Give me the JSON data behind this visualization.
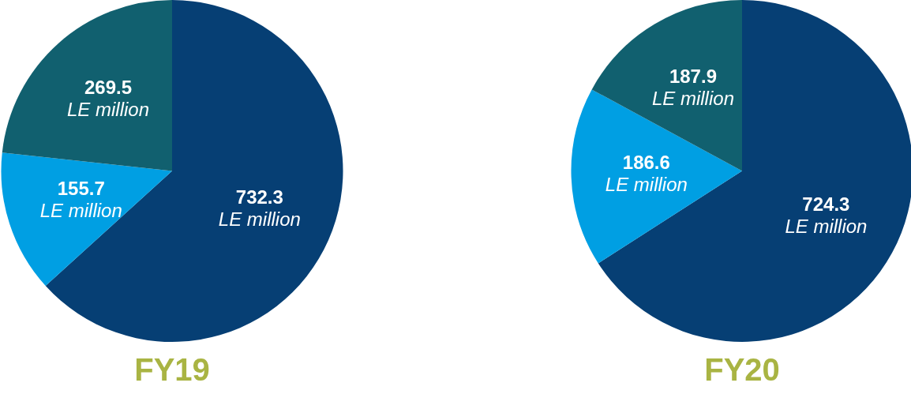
{
  "chart_data": [
    {
      "type": "pie",
      "title": "FY19",
      "categories": [
        null,
        null,
        null
      ],
      "values": [
        732.3,
        155.7,
        269.5
      ],
      "colors": [
        "#063f74",
        "#009fe3",
        "#11606f"
      ],
      "value_labels": [
        "732.3\nLE million",
        "155.7\nLE million",
        "269.5\nLE million"
      ]
    },
    {
      "type": "pie",
      "title": "FY20",
      "categories": [
        null,
        null,
        null
      ],
      "values": [
        724.3,
        186.6,
        187.9
      ],
      "colors": [
        "#063f74",
        "#009fe3",
        "#11606f"
      ],
      "value_labels": [
        "724.3\nLE million",
        "186.6\nLE million",
        "187.9\nLE million"
      ]
    }
  ]
}
